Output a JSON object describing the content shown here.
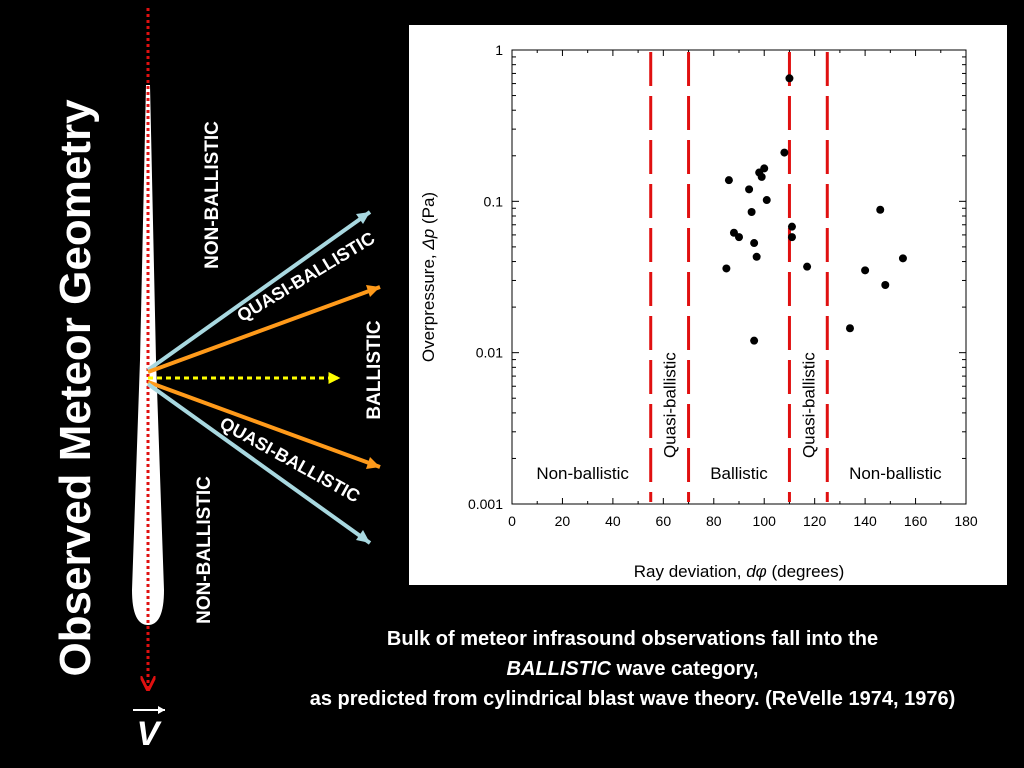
{
  "title": "Observed Meteor Geometry",
  "velocity_label": "V",
  "geometry_labels": {
    "non_ballistic_top": "NON-BALLISTIC",
    "quasi_ballistic_top": "QUASI-BALLISTIC",
    "ballistic": "BALLISTIC",
    "quasi_ballistic_bottom": "QUASI-BALLISTIC",
    "non_ballistic_bottom": "NON-BALLISTIC"
  },
  "colors": {
    "background": "#000000",
    "trail": "#ffffff",
    "velocity_arrow": "#e01010",
    "quasi_ballistic_ray": "#ff9a1a",
    "non_ballistic_ray": "#a8d8e0",
    "ballistic_ray": "#ffff00",
    "boundary_line": "#e01010",
    "data_point": "#000000"
  },
  "caption": {
    "line1": "Bulk of meteor infrasound observations fall into the",
    "line2_emph": "BALLISTIC",
    "line2_rest": " wave category,",
    "line3": "as predicted from cylindrical blast wave theory.     (ReVelle 1974, 1976)"
  },
  "chart_data": {
    "type": "scatter",
    "xlabel_prefix": "Ray deviation, ",
    "xlabel_symbol": "dφ",
    "xlabel_suffix": " (degrees)",
    "ylabel_prefix": "Overpressure, ",
    "ylabel_symbol": "Δp",
    "ylabel_suffix": " (Pa)",
    "xlim": [
      0,
      180
    ],
    "ylim": [
      0.001,
      1
    ],
    "yscale": "log",
    "x_ticks": [
      "0",
      "20",
      "40",
      "60",
      "80",
      "100",
      "120",
      "140",
      "160",
      "180"
    ],
    "y_ticks": [
      "0.001",
      "0.01",
      "0.1",
      "1"
    ],
    "boundaries": [
      55,
      70,
      110,
      125
    ],
    "regions": [
      {
        "label": "Non-ballistic",
        "x": 28,
        "orientation": "horizontal"
      },
      {
        "label": "Quasi-ballistic",
        "x": 62.5,
        "orientation": "vertical"
      },
      {
        "label": "Ballistic",
        "x": 90,
        "orientation": "horizontal"
      },
      {
        "label": "Quasi-ballistic",
        "x": 117.5,
        "orientation": "vertical"
      },
      {
        "label": "Non-ballistic",
        "x": 152,
        "orientation": "horizontal"
      }
    ],
    "points": [
      {
        "x": 110,
        "y": 0.65
      },
      {
        "x": 108,
        "y": 0.21
      },
      {
        "x": 100,
        "y": 0.165
      },
      {
        "x": 98,
        "y": 0.155
      },
      {
        "x": 99,
        "y": 0.145
      },
      {
        "x": 86,
        "y": 0.138
      },
      {
        "x": 94,
        "y": 0.12
      },
      {
        "x": 101,
        "y": 0.102
      },
      {
        "x": 95,
        "y": 0.085
      },
      {
        "x": 111,
        "y": 0.068
      },
      {
        "x": 88,
        "y": 0.062
      },
      {
        "x": 90,
        "y": 0.058
      },
      {
        "x": 111,
        "y": 0.058
      },
      {
        "x": 96,
        "y": 0.053
      },
      {
        "x": 97,
        "y": 0.043
      },
      {
        "x": 117,
        "y": 0.037
      },
      {
        "x": 85,
        "y": 0.036
      },
      {
        "x": 146,
        "y": 0.088
      },
      {
        "x": 155,
        "y": 0.042
      },
      {
        "x": 140,
        "y": 0.035
      },
      {
        "x": 148,
        "y": 0.028
      },
      {
        "x": 134,
        "y": 0.0145
      },
      {
        "x": 96,
        "y": 0.012
      }
    ]
  }
}
